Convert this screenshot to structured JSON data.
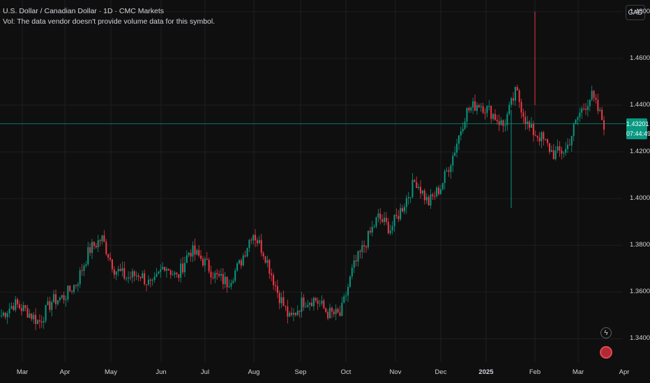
{
  "header": {
    "symbol_line": "U.S. Dollar / Canadian Dollar · 1D · CMC Markets",
    "volume_note": "Vol: The data vendor doesn't provide volume data for this symbol."
  },
  "currency_button": "CAD",
  "last_price": {
    "value": "1.43201",
    "countdown": "07:44:49"
  },
  "colors": {
    "up": "#089981",
    "down": "#f23645",
    "grid": "#1f1f1f",
    "background": "#0f0f0f"
  },
  "chart_data": {
    "type": "candlestick",
    "ylim": [
      1.33,
      1.485
    ],
    "y_ticks": [
      "1.48000",
      "1.46000",
      "1.44000",
      "1.42000",
      "1.40000",
      "1.38000",
      "1.36000",
      "1.34000"
    ],
    "x_ticks": [
      "Mar",
      "Apr",
      "May",
      "Jun",
      "Jul",
      "Aug",
      "Sep",
      "Oct",
      "Nov",
      "Dec",
      "2025",
      "Feb",
      "Mar",
      "Apr"
    ],
    "last_price": 1.43201,
    "series": [
      {
        "x": "Feb",
        "close": 1.35
      },
      {
        "x": "Mar",
        "close": 1.355
      },
      {
        "x": "Mar",
        "close": 1.352
      },
      {
        "x": "Mar",
        "close": 1.347
      },
      {
        "x": "Mar",
        "close": 1.356
      },
      {
        "x": "Apr",
        "close": 1.358
      },
      {
        "x": "Apr",
        "close": 1.364
      },
      {
        "x": "Apr",
        "close": 1.378
      },
      {
        "x": "Apr",
        "close": 1.383
      },
      {
        "x": "May",
        "close": 1.37
      },
      {
        "x": "May",
        "close": 1.366
      },
      {
        "x": "May",
        "close": 1.368
      },
      {
        "x": "May",
        "close": 1.362
      },
      {
        "x": "Jun",
        "close": 1.372
      },
      {
        "x": "Jun",
        "close": 1.366
      },
      {
        "x": "Jun",
        "close": 1.378
      },
      {
        "x": "Jul",
        "close": 1.374
      },
      {
        "x": "Jul",
        "close": 1.367
      },
      {
        "x": "Jul",
        "close": 1.364
      },
      {
        "x": "Jul",
        "close": 1.372
      },
      {
        "x": "Aug",
        "close": 1.386
      },
      {
        "x": "Aug",
        "close": 1.376
      },
      {
        "x": "Aug",
        "close": 1.36
      },
      {
        "x": "Aug",
        "close": 1.348
      },
      {
        "x": "Sep",
        "close": 1.356
      },
      {
        "x": "Sep",
        "close": 1.357
      },
      {
        "x": "Sep",
        "close": 1.351
      },
      {
        "x": "Sep",
        "close": 1.35
      },
      {
        "x": "Oct",
        "close": 1.37
      },
      {
        "x": "Oct",
        "close": 1.381
      },
      {
        "x": "Oct",
        "close": 1.392
      },
      {
        "x": "Oct",
        "close": 1.387
      },
      {
        "x": "Nov",
        "close": 1.397
      },
      {
        "x": "Nov",
        "close": 1.408
      },
      {
        "x": "Nov",
        "close": 1.398
      },
      {
        "x": "Dec",
        "close": 1.405
      },
      {
        "x": "Dec",
        "close": 1.419
      },
      {
        "x": "Dec",
        "close": 1.437
      },
      {
        "x": "2025",
        "close": 1.441
      },
      {
        "x": "2025",
        "close": 1.437
      },
      {
        "x": "2025",
        "close": 1.431
      },
      {
        "x": "Jan",
        "close": 1.446
      },
      {
        "x": "Feb",
        "close": 1.43
      },
      {
        "x": "Feb",
        "close": 1.426
      },
      {
        "x": "Feb",
        "close": 1.419
      },
      {
        "x": "Feb",
        "close": 1.421
      },
      {
        "x": "Mar",
        "close": 1.436
      },
      {
        "x": "Mar",
        "close": 1.444
      },
      {
        "x": "Mar",
        "close": 1.432
      }
    ]
  }
}
